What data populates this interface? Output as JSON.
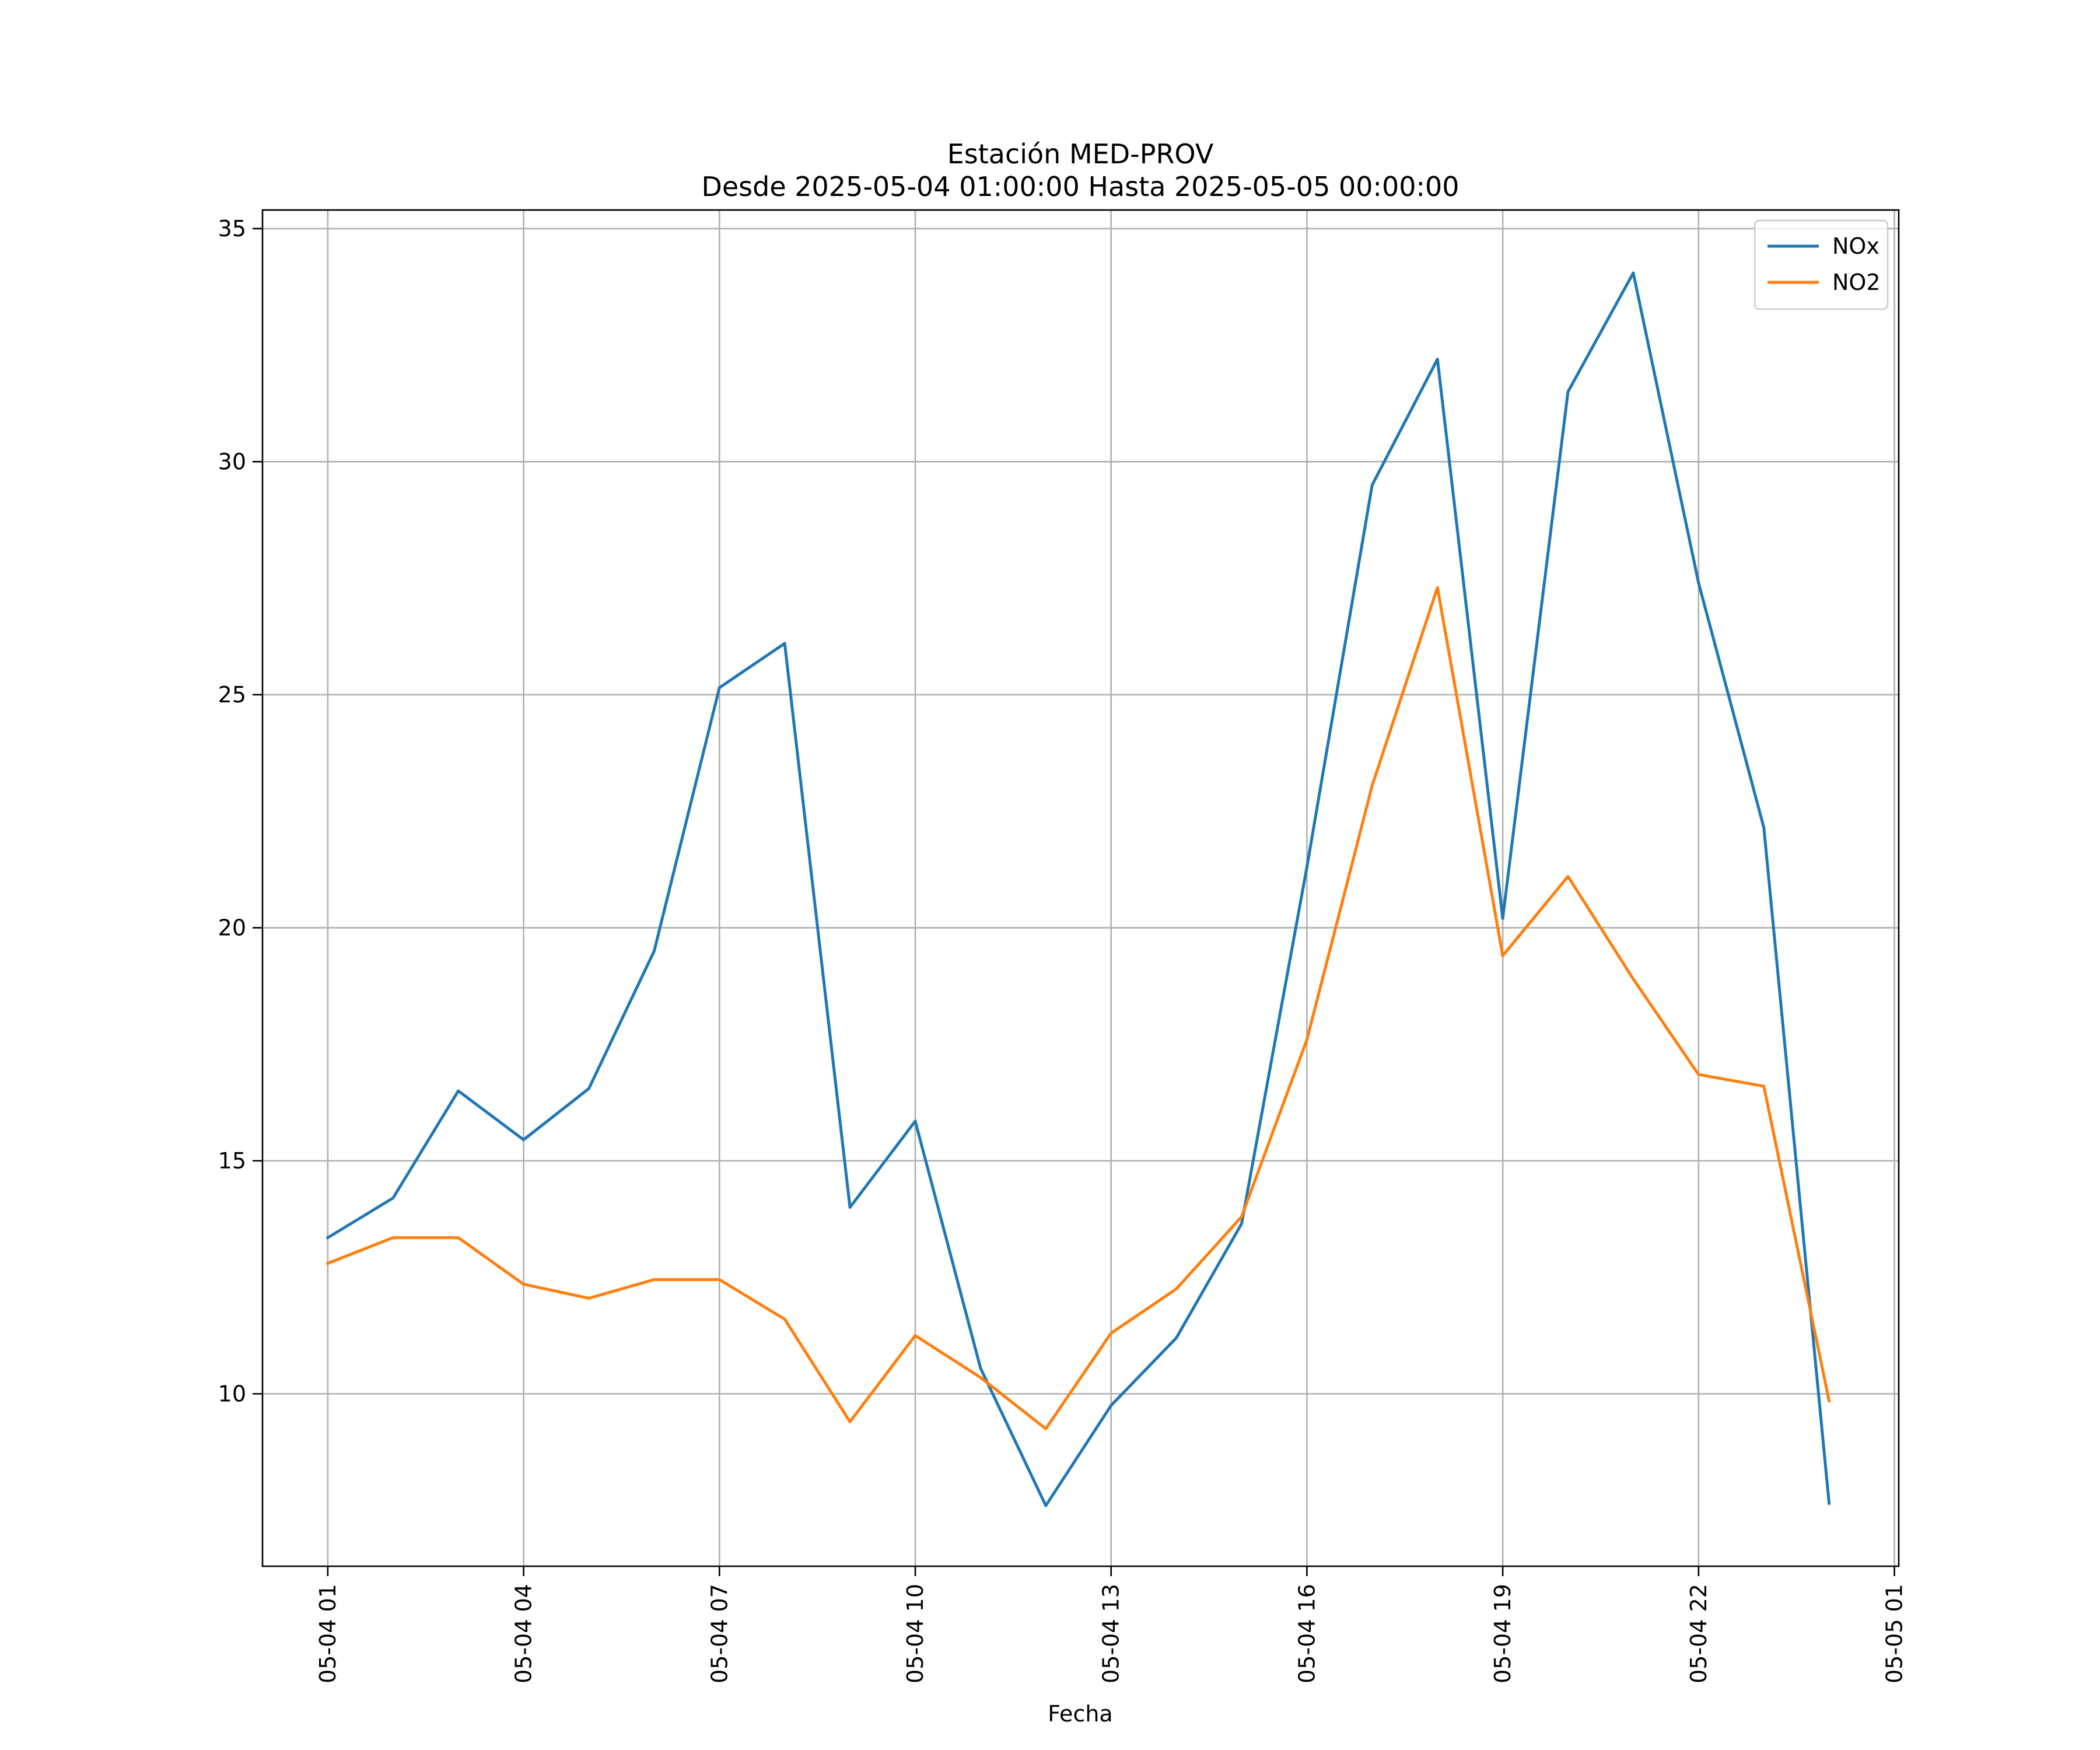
{
  "chart_data": {
    "type": "line",
    "title": "Estación MED-PROV",
    "subtitle": "Desde 2025-05-04 01:00:00 Hasta 2025-05-05 00:00:00",
    "xlabel": "Fecha",
    "ylabel": "",
    "x": [
      "2025-05-04 01:00",
      "2025-05-04 02:00",
      "2025-05-04 03:00",
      "2025-05-04 04:00",
      "2025-05-04 05:00",
      "2025-05-04 06:00",
      "2025-05-04 07:00",
      "2025-05-04 08:00",
      "2025-05-04 09:00",
      "2025-05-04 10:00",
      "2025-05-04 11:00",
      "2025-05-04 12:00",
      "2025-05-04 13:00",
      "2025-05-04 14:00",
      "2025-05-04 15:00",
      "2025-05-04 16:00",
      "2025-05-04 17:00",
      "2025-05-04 18:00",
      "2025-05-04 19:00",
      "2025-05-04 20:00",
      "2025-05-04 21:00",
      "2025-05-04 22:00",
      "2025-05-04 23:00",
      "2025-05-05 00:00"
    ],
    "xlim": [
      "2025-05-04 00:00",
      "2025-05-05 01:04"
    ],
    "x_ticks": [
      {
        "value": "2025-05-04 01:00",
        "label": "05-04 01"
      },
      {
        "value": "2025-05-04 04:00",
        "label": "05-04 04"
      },
      {
        "value": "2025-05-04 07:00",
        "label": "05-04 07"
      },
      {
        "value": "2025-05-04 10:00",
        "label": "05-04 10"
      },
      {
        "value": "2025-05-04 13:00",
        "label": "05-04 13"
      },
      {
        "value": "2025-05-04 16:00",
        "label": "05-04 16"
      },
      {
        "value": "2025-05-04 19:00",
        "label": "05-04 19"
      },
      {
        "value": "2025-05-04 22:00",
        "label": "05-04 22"
      },
      {
        "value": "2025-05-05 01:00",
        "label": "05-05 01"
      }
    ],
    "ylim": [
      6.3,
      35.4
    ],
    "y_ticks": [
      10,
      15,
      20,
      25,
      30,
      35
    ],
    "grid": true,
    "legend_position": "top-right",
    "series": [
      {
        "name": "NOx",
        "color": "#1f77b4",
        "values": [
          13.35,
          14.2,
          16.5,
          15.45,
          16.55,
          19.5,
          25.15,
          26.1,
          14.0,
          15.85,
          10.55,
          7.6,
          9.75,
          11.2,
          13.65,
          21.3,
          29.5,
          32.2,
          20.2,
          31.5,
          34.05,
          27.4,
          22.15,
          7.65
        ]
      },
      {
        "name": "NO2",
        "color": "#ff7f0e",
        "values": [
          12.8,
          13.35,
          13.35,
          12.35,
          12.05,
          12.45,
          12.45,
          11.6,
          9.4,
          11.25,
          10.35,
          9.25,
          11.3,
          12.25,
          13.8,
          17.6,
          23.05,
          27.3,
          19.4,
          21.1,
          18.9,
          16.85,
          16.6,
          9.85
        ]
      }
    ]
  }
}
